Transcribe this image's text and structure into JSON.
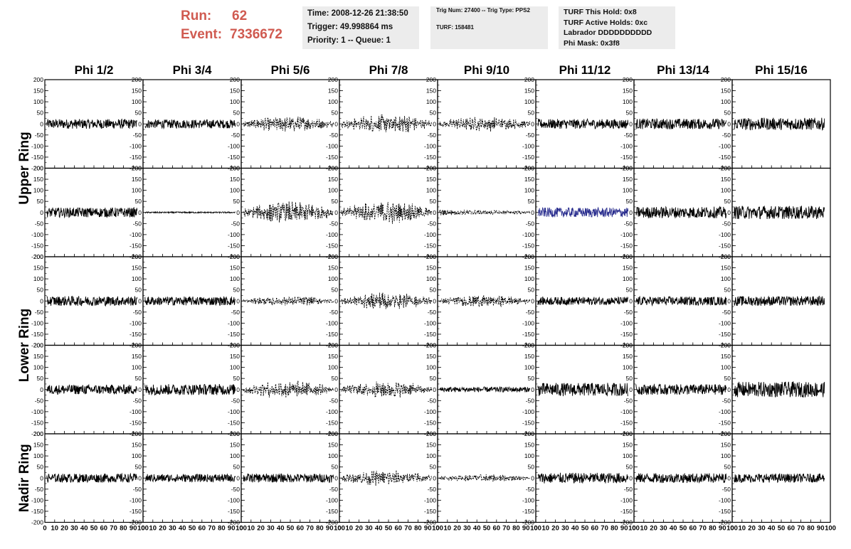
{
  "header": {
    "run_label": "Run:",
    "run_value": "62",
    "event_label": "Event:",
    "event_value": "7336672",
    "time_box": [
      "Time: 2008-12-26 21:38:50",
      "Trigger: 49.998864 ms",
      "Priority: 1 -- Queue: 1"
    ],
    "trig_box": [
      "Trig Num: 27400 -- Trig Type: PPS2",
      "TURF: 158481"
    ],
    "turf_box": [
      "TURF This Hold: 0x8",
      "TURF Active Holds: 0xc",
      "Labrador DDDDDDDDDD",
      "Phi Mask: 0x3f8"
    ]
  },
  "chart_data": {
    "type": "line",
    "columns": [
      "Phi 1/2",
      "Phi 3/4",
      "Phi 5/6",
      "Phi 7/8",
      "Phi 9/10",
      "Phi 11/12",
      "Phi 13/14",
      "Phi 15/16"
    ],
    "ring_labels": [
      "Upper Ring",
      "Lower Ring",
      "Nadir Ring"
    ],
    "ring_panel_rows": [
      [
        0,
        1
      ],
      [
        2,
        3
      ],
      [
        4
      ]
    ],
    "ylim": [
      -200,
      200
    ],
    "xlim": [
      0,
      100
    ],
    "yticks": [
      "-200",
      "-150",
      "-100",
      "-50",
      "0",
      "50",
      "100",
      "150",
      "200"
    ],
    "xticks": [
      "0",
      "10",
      "20",
      "30",
      "40",
      "50",
      "60",
      "70",
      "80",
      "90",
      "100"
    ],
    "highlight_color": "#2b2f8f",
    "trace_color": "#000000",
    "panel_amplitudes": [
      [
        22,
        20,
        48,
        60,
        45,
        22,
        24,
        28
      ],
      [
        22,
        3,
        68,
        70,
        20,
        22,
        26,
        30
      ],
      [
        22,
        20,
        30,
        55,
        38,
        18,
        20,
        22
      ],
      [
        22,
        25,
        55,
        50,
        12,
        30,
        24,
        35
      ],
      [
        20,
        18,
        20,
        48,
        24,
        24,
        22,
        20
      ]
    ],
    "panel_shapes": [
      [
        "flat",
        "flat",
        "bulge",
        "bulge",
        "bulge",
        "flat",
        "flat",
        "flat"
      ],
      [
        "flat",
        "flat",
        "bulge",
        "bulge",
        "taper",
        "flat",
        "flat",
        "flat"
      ],
      [
        "flat",
        "flat",
        "bulge",
        "bulge",
        "bulge",
        "flat",
        "flat",
        "flat"
      ],
      [
        "flat",
        "flat",
        "bulge",
        "bulge",
        "flat",
        "flat",
        "flat",
        "flat"
      ],
      [
        "flat",
        "flat",
        "flat",
        "bulge",
        "bulge",
        "flat",
        "flat",
        "flat"
      ]
    ],
    "highlighted_panel": [
      1,
      5
    ]
  }
}
